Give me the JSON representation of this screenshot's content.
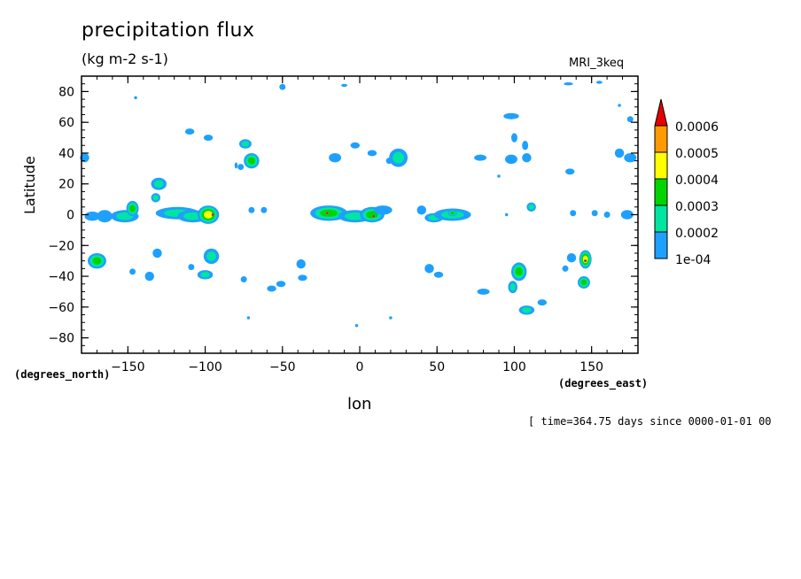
{
  "chart_data": {
    "type": "heatmap",
    "title": "precipitation flux",
    "units": "(kg m-2 s-1)",
    "model_label": "MRI_3keq",
    "xlabel": "lon",
    "ylabel": "Latitude",
    "x_units": "(degrees_east)",
    "y_units": "(degrees_north)",
    "time_label": "[ time=364.75 days since 0000-01-01 00",
    "xlim": [
      -180,
      180
    ],
    "ylim": [
      -90,
      90
    ],
    "x_ticks": [
      -150,
      -100,
      -50,
      0,
      50,
      100,
      150
    ],
    "x_tick_labels": [
      "-150",
      "-100",
      "-50",
      "0",
      "50",
      "100",
      "150"
    ],
    "y_ticks": [
      -80,
      -60,
      -40,
      -20,
      0,
      20,
      40,
      60,
      80
    ],
    "y_tick_labels": [
      "-80",
      "-60",
      "-40",
      "-20",
      "0",
      "20",
      "40",
      "60",
      "80"
    ],
    "legend": {
      "placement": "right",
      "labels": [
        "1e-04",
        "0.0002",
        "0.0003",
        "0.0004",
        "0.0005",
        "0.0006"
      ],
      "levels": [
        0.0001,
        0.0002,
        0.0003,
        0.0004,
        0.0005,
        0.0006
      ],
      "colors": [
        "#1ea0ff",
        "#00e6a0",
        "#00d400",
        "#ffff00",
        "#ff9a00",
        "#e60000"
      ]
    },
    "features": [
      {
        "lon": -178,
        "lat": 37,
        "level": 1,
        "rx": 3,
        "ry": 3
      },
      {
        "lon": -173,
        "lat": -1,
        "level": 1,
        "rx": 5,
        "ry": 3
      },
      {
        "lon": -165,
        "lat": -1,
        "level": 1,
        "rx": 5,
        "ry": 4
      },
      {
        "lon": -170,
        "lat": -30,
        "level": 3,
        "rx": 6,
        "ry": 5
      },
      {
        "lon": -152,
        "lat": -1,
        "level": 2,
        "rx": 9,
        "ry": 4
      },
      {
        "lon": -147,
        "lat": 4,
        "level": 3,
        "rx": 4,
        "ry": 5
      },
      {
        "lon": -147,
        "lat": -37,
        "level": 1,
        "rx": 2,
        "ry": 2
      },
      {
        "lon": -136,
        "lat": -40,
        "level": 1,
        "rx": 3,
        "ry": 3
      },
      {
        "lon": -130,
        "lat": 20,
        "level": 2,
        "rx": 5,
        "ry": 4
      },
      {
        "lon": -132,
        "lat": 11,
        "level": 2,
        "rx": 3,
        "ry": 3
      },
      {
        "lon": -131,
        "lat": -25,
        "level": 1,
        "rx": 3,
        "ry": 3
      },
      {
        "lon": -118,
        "lat": 1,
        "level": 2,
        "rx": 14,
        "ry": 4
      },
      {
        "lon": -108,
        "lat": -1,
        "level": 2,
        "rx": 10,
        "ry": 4
      },
      {
        "lon": -98,
        "lat": 0,
        "level": 4,
        "rx": 7,
        "ry": 6
      },
      {
        "lon": -95,
        "lat": 0,
        "level": 6,
        "rx": 1,
        "ry": 1
      },
      {
        "lon": -110,
        "lat": 54,
        "level": 1,
        "rx": 3,
        "ry": 2
      },
      {
        "lon": -98,
        "lat": 50,
        "level": 1,
        "rx": 3,
        "ry": 2
      },
      {
        "lon": -96,
        "lat": -27,
        "level": 2,
        "rx": 5,
        "ry": 5
      },
      {
        "lon": -100,
        "lat": -39,
        "level": 2,
        "rx": 5,
        "ry": 3
      },
      {
        "lon": -109,
        "lat": -34,
        "level": 1,
        "rx": 2,
        "ry": 2
      },
      {
        "lon": -74,
        "lat": 46,
        "level": 2,
        "rx": 4,
        "ry": 3
      },
      {
        "lon": -70,
        "lat": 35,
        "level": 3,
        "rx": 5,
        "ry": 5
      },
      {
        "lon": -77,
        "lat": 31,
        "level": 1,
        "rx": 2,
        "ry": 2
      },
      {
        "lon": -80,
        "lat": 32,
        "level": 1,
        "rx": 1,
        "ry": 2
      },
      {
        "lon": -70,
        "lat": 3,
        "level": 1,
        "rx": 2,
        "ry": 2
      },
      {
        "lon": -62,
        "lat": 3,
        "level": 1,
        "rx": 2,
        "ry": 2
      },
      {
        "lon": -75,
        "lat": -42,
        "level": 1,
        "rx": 2,
        "ry": 2
      },
      {
        "lon": -72,
        "lat": -67,
        "level": 1,
        "rx": 1,
        "ry": 1
      },
      {
        "lon": -57,
        "lat": -48,
        "level": 1,
        "rx": 3,
        "ry": 2
      },
      {
        "lon": -51,
        "lat": -45,
        "level": 1,
        "rx": 3,
        "ry": 2
      },
      {
        "lon": -38,
        "lat": -32,
        "level": 1,
        "rx": 3,
        "ry": 3
      },
      {
        "lon": -37,
        "lat": -41,
        "level": 1,
        "rx": 3,
        "ry": 2
      },
      {
        "lon": -50,
        "lat": 83,
        "level": 1,
        "rx": 2,
        "ry": 2
      },
      {
        "lon": -20,
        "lat": 1,
        "level": 3,
        "rx": 12,
        "ry": 5
      },
      {
        "lon": -21,
        "lat": 1,
        "level": 6,
        "rx": 1,
        "ry": 1
      },
      {
        "lon": -3,
        "lat": -1,
        "level": 2,
        "rx": 11,
        "ry": 4
      },
      {
        "lon": 8,
        "lat": 0,
        "level": 3,
        "rx": 8,
        "ry": 5
      },
      {
        "lon": 9,
        "lat": -1,
        "level": 6,
        "rx": 1,
        "ry": 1
      },
      {
        "lon": 15,
        "lat": 3,
        "level": 1,
        "rx": 6,
        "ry": 3
      },
      {
        "lon": -16,
        "lat": 37,
        "level": 1,
        "rx": 4,
        "ry": 3
      },
      {
        "lon": -3,
        "lat": 45,
        "level": 1,
        "rx": 3,
        "ry": 2
      },
      {
        "lon": 8,
        "lat": 40,
        "level": 1,
        "rx": 3,
        "ry": 2
      },
      {
        "lon": 25,
        "lat": 37,
        "level": 2,
        "rx": 6,
        "ry": 6
      },
      {
        "lon": 19,
        "lat": 35,
        "level": 1,
        "rx": 2,
        "ry": 2
      },
      {
        "lon": 40,
        "lat": 3,
        "level": 1,
        "rx": 3,
        "ry": 3
      },
      {
        "lon": 48,
        "lat": -2,
        "level": 2,
        "rx": 6,
        "ry": 3
      },
      {
        "lon": 60,
        "lat": 0,
        "level": 2,
        "rx": 12,
        "ry": 4
      },
      {
        "lon": 60,
        "lat": 1,
        "level": 3,
        "rx": 3,
        "ry": 2
      },
      {
        "lon": 78,
        "lat": 37,
        "level": 1,
        "rx": 4,
        "ry": 2
      },
      {
        "lon": 45,
        "lat": -35,
        "level": 1,
        "rx": 3,
        "ry": 3
      },
      {
        "lon": 51,
        "lat": -39,
        "level": 1,
        "rx": 3,
        "ry": 2
      },
      {
        "lon": 80,
        "lat": -50,
        "level": 1,
        "rx": 4,
        "ry": 2
      },
      {
        "lon": 98,
        "lat": 36,
        "level": 1,
        "rx": 4,
        "ry": 3
      },
      {
        "lon": 90,
        "lat": 25,
        "level": 1,
        "rx": 1,
        "ry": 1
      },
      {
        "lon": 108,
        "lat": 37,
        "level": 1,
        "rx": 3,
        "ry": 3
      },
      {
        "lon": 100,
        "lat": 50,
        "level": 1,
        "rx": 2,
        "ry": 3
      },
      {
        "lon": 107,
        "lat": 45,
        "level": 1,
        "rx": 2,
        "ry": 3
      },
      {
        "lon": 98,
        "lat": 64,
        "level": 1,
        "rx": 5,
        "ry": 2
      },
      {
        "lon": 111,
        "lat": 5,
        "level": 2,
        "rx": 3,
        "ry": 3
      },
      {
        "lon": 95,
        "lat": 0,
        "level": 1,
        "rx": 1,
        "ry": 1
      },
      {
        "lon": 103,
        "lat": -37,
        "level": 3,
        "rx": 5,
        "ry": 6
      },
      {
        "lon": 99,
        "lat": -47,
        "level": 2,
        "rx": 3,
        "ry": 4
      },
      {
        "lon": 108,
        "lat": -62,
        "level": 2,
        "rx": 5,
        "ry": 3
      },
      {
        "lon": 118,
        "lat": -57,
        "level": 1,
        "rx": 3,
        "ry": 2
      },
      {
        "lon": 133,
        "lat": -35,
        "level": 1,
        "rx": 2,
        "ry": 2
      },
      {
        "lon": 137,
        "lat": -28,
        "level": 1,
        "rx": 3,
        "ry": 3
      },
      {
        "lon": 146,
        "lat": -29,
        "level": 4,
        "rx": 4,
        "ry": 6
      },
      {
        "lon": 146,
        "lat": -30,
        "level": 6,
        "rx": 1,
        "ry": 1
      },
      {
        "lon": 145,
        "lat": -44,
        "level": 3,
        "rx": 4,
        "ry": 4
      },
      {
        "lon": 138,
        "lat": 1,
        "level": 1,
        "rx": 2,
        "ry": 2
      },
      {
        "lon": 152,
        "lat": 1,
        "level": 1,
        "rx": 2,
        "ry": 2
      },
      {
        "lon": 160,
        "lat": 0,
        "level": 1,
        "rx": 2,
        "ry": 2
      },
      {
        "lon": 173,
        "lat": 0,
        "level": 1,
        "rx": 4,
        "ry": 3
      },
      {
        "lon": 136,
        "lat": 28,
        "level": 1,
        "rx": 3,
        "ry": 2
      },
      {
        "lon": 168,
        "lat": 40,
        "level": 1,
        "rx": 3,
        "ry": 3
      },
      {
        "lon": 175,
        "lat": 37,
        "level": 1,
        "rx": 4,
        "ry": 3
      },
      {
        "lon": 175,
        "lat": 62,
        "level": 1,
        "rx": 2,
        "ry": 2
      },
      {
        "lon": 168,
        "lat": 71,
        "level": 1,
        "rx": 1,
        "ry": 1
      },
      {
        "lon": -145,
        "lat": 76,
        "level": 1,
        "rx": 1,
        "ry": 1
      },
      {
        "lon": -10,
        "lat": 84,
        "level": 1,
        "rx": 2,
        "ry": 1
      },
      {
        "lon": 135,
        "lat": 85,
        "level": 1,
        "rx": 3,
        "ry": 1
      },
      {
        "lon": 155,
        "lat": 86,
        "level": 1,
        "rx": 2,
        "ry": 1
      },
      {
        "lon": -2,
        "lat": -72,
        "level": 1,
        "rx": 1,
        "ry": 1
      },
      {
        "lon": 20,
        "lat": -67,
        "level": 1,
        "rx": 1,
        "ry": 1
      }
    ]
  }
}
